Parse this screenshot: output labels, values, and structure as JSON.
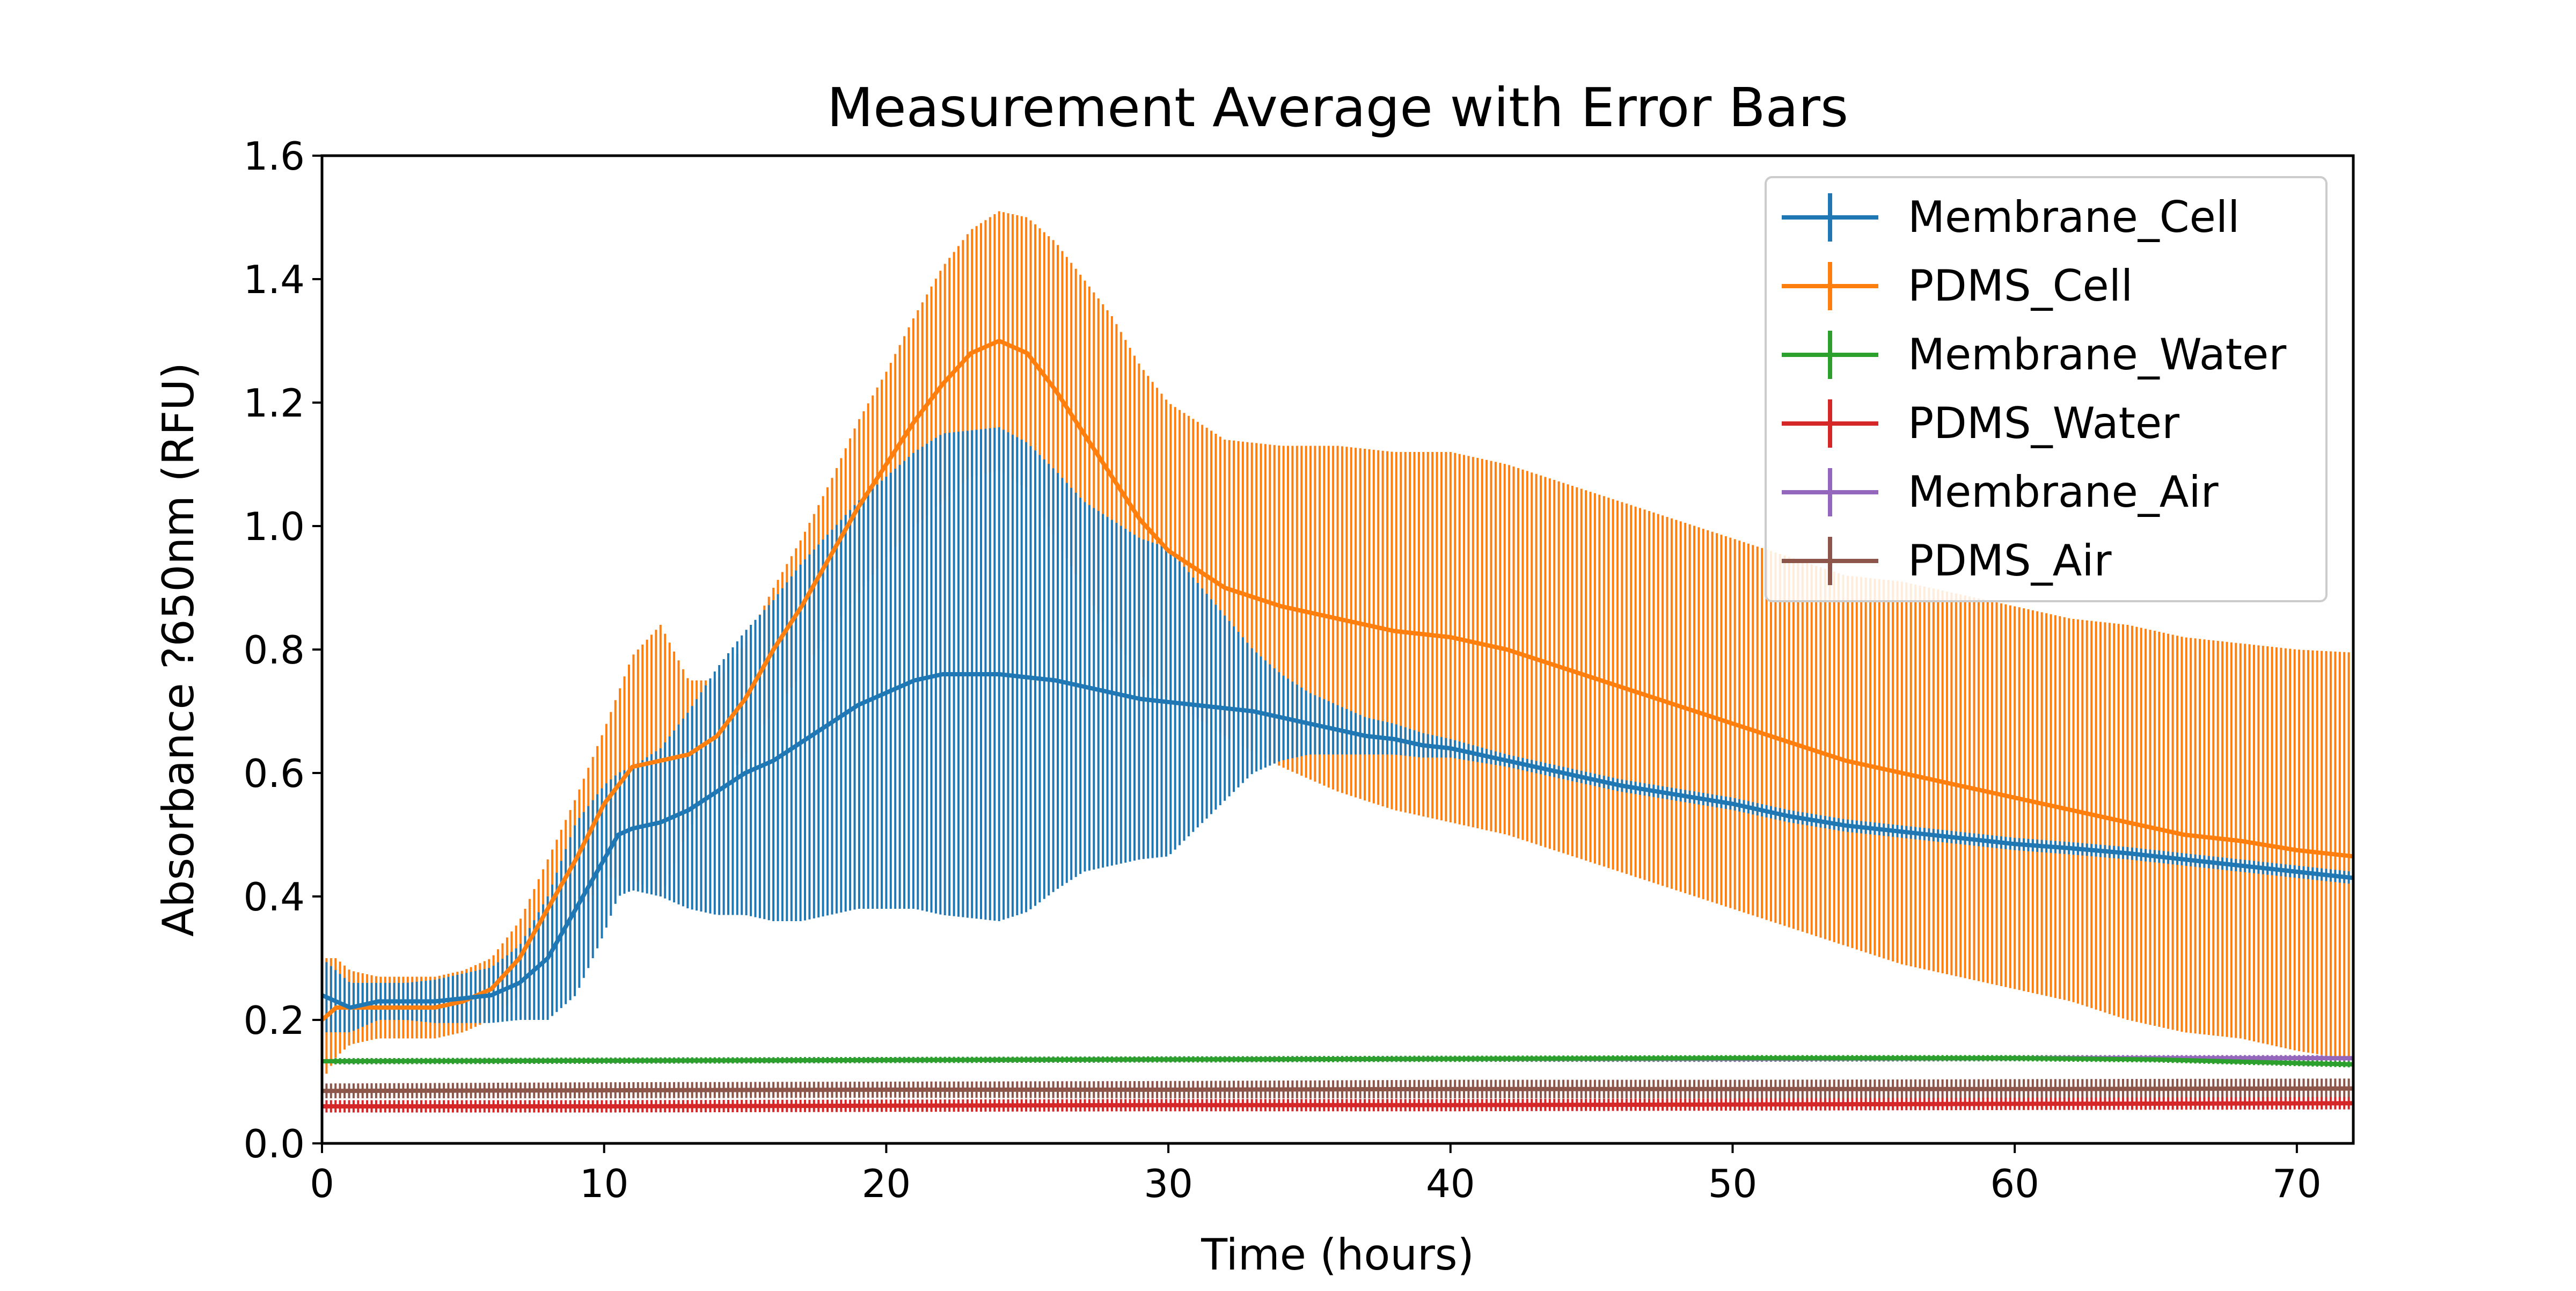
{
  "chart_data": {
    "type": "line",
    "title": "Measurement Average with Error Bars",
    "xlabel": "Time (hours)",
    "ylabel": "Absorbance ?650nm (RFU)",
    "xlim": [
      0,
      72
    ],
    "ylim": [
      0,
      1.6
    ],
    "xticks": [
      "0",
      "10",
      "20",
      "30",
      "40",
      "50",
      "60",
      "70"
    ],
    "yticks": [
      "0.0",
      "0.2",
      "0.4",
      "0.6",
      "0.8",
      "1.0",
      "1.2",
      "1.4",
      "1.6"
    ],
    "grid": false,
    "legend_position": "top-right",
    "series": [
      {
        "name": "Membrane_Cell",
        "color": "#1f77b4",
        "x": [
          0,
          0.5,
          1,
          2,
          3,
          4,
          5,
          6,
          7,
          8,
          9,
          10,
          10.5,
          11,
          12,
          13,
          14,
          15,
          16,
          17,
          18,
          19,
          20,
          21,
          22,
          23,
          24,
          25,
          26,
          27,
          28,
          29,
          30,
          31,
          32,
          33,
          34,
          35,
          36,
          37,
          38,
          39,
          40,
          42,
          44,
          46,
          48,
          50,
          52,
          54,
          56,
          58,
          60,
          62,
          64,
          66,
          68,
          70,
          72
        ],
        "mean": [
          0.24,
          0.23,
          0.22,
          0.23,
          0.23,
          0.23,
          0.235,
          0.24,
          0.26,
          0.3,
          0.38,
          0.46,
          0.5,
          0.51,
          0.52,
          0.54,
          0.57,
          0.6,
          0.62,
          0.65,
          0.68,
          0.71,
          0.73,
          0.75,
          0.76,
          0.76,
          0.76,
          0.755,
          0.75,
          0.74,
          0.73,
          0.72,
          0.715,
          0.71,
          0.705,
          0.7,
          0.69,
          0.68,
          0.67,
          0.66,
          0.655,
          0.645,
          0.64,
          0.62,
          0.6,
          0.58,
          0.565,
          0.55,
          0.53,
          0.515,
          0.505,
          0.495,
          0.485,
          0.478,
          0.47,
          0.46,
          0.45,
          0.44,
          0.43
        ],
        "err": [
          0.06,
          0.05,
          0.04,
          0.03,
          0.03,
          0.035,
          0.04,
          0.045,
          0.06,
          0.1,
          0.14,
          0.12,
          0.1,
          0.1,
          0.12,
          0.16,
          0.2,
          0.23,
          0.26,
          0.29,
          0.31,
          0.33,
          0.35,
          0.37,
          0.39,
          0.395,
          0.4,
          0.38,
          0.34,
          0.3,
          0.28,
          0.26,
          0.25,
          0.2,
          0.15,
          0.1,
          0.07,
          0.05,
          0.04,
          0.03,
          0.025,
          0.02,
          0.015,
          0.01,
          0.01,
          0.01,
          0.01,
          0.01,
          0.01,
          0.01,
          0.01,
          0.01,
          0.01,
          0.01,
          0.01,
          0.01,
          0.01,
          0.01,
          0.01
        ]
      },
      {
        "name": "PDMS_Cell",
        "color": "#ff7f0e",
        "x": [
          0,
          0.5,
          1,
          2,
          3,
          4,
          5,
          6,
          7,
          8,
          9,
          10,
          11,
          12,
          13,
          14,
          15,
          16,
          17,
          18,
          19,
          20,
          21,
          22,
          23,
          24,
          25,
          26,
          27,
          28,
          29,
          30,
          32,
          34,
          36,
          38,
          40,
          42,
          44,
          46,
          48,
          50,
          52,
          54,
          56,
          58,
          60,
          62,
          64,
          66,
          68,
          70,
          72
        ],
        "mean": [
          0.2,
          0.22,
          0.22,
          0.22,
          0.22,
          0.22,
          0.23,
          0.25,
          0.3,
          0.38,
          0.46,
          0.55,
          0.61,
          0.62,
          0.63,
          0.66,
          0.72,
          0.8,
          0.87,
          0.95,
          1.03,
          1.1,
          1.17,
          1.23,
          1.28,
          1.3,
          1.28,
          1.22,
          1.15,
          1.08,
          1.01,
          0.96,
          0.9,
          0.87,
          0.85,
          0.83,
          0.82,
          0.8,
          0.77,
          0.74,
          0.71,
          0.68,
          0.65,
          0.62,
          0.6,
          0.58,
          0.56,
          0.54,
          0.52,
          0.5,
          0.49,
          0.475,
          0.465
        ],
        "err": [
          0.1,
          0.08,
          0.06,
          0.05,
          0.05,
          0.05,
          0.05,
          0.05,
          0.06,
          0.08,
          0.1,
          0.12,
          0.18,
          0.22,
          0.12,
          0.09,
          0.09,
          0.1,
          0.11,
          0.12,
          0.14,
          0.15,
          0.17,
          0.19,
          0.2,
          0.21,
          0.22,
          0.24,
          0.25,
          0.26,
          0.25,
          0.24,
          0.24,
          0.26,
          0.28,
          0.29,
          0.3,
          0.3,
          0.3,
          0.3,
          0.3,
          0.3,
          0.3,
          0.3,
          0.31,
          0.31,
          0.31,
          0.31,
          0.32,
          0.32,
          0.32,
          0.325,
          0.33
        ]
      },
      {
        "name": "Membrane_Water",
        "color": "#2ca02c",
        "x": [
          0,
          10,
          20,
          30,
          40,
          50,
          60,
          65,
          70,
          72
        ],
        "mean": [
          0.133,
          0.134,
          0.135,
          0.136,
          0.137,
          0.138,
          0.138,
          0.136,
          0.13,
          0.128
        ],
        "err": [
          0.005,
          0.005,
          0.005,
          0.005,
          0.005,
          0.005,
          0.005,
          0.005,
          0.005,
          0.005
        ]
      },
      {
        "name": "PDMS_Water",
        "color": "#d62728",
        "x": [
          0,
          10,
          20,
          30,
          40,
          50,
          60,
          72
        ],
        "mean": [
          0.06,
          0.06,
          0.061,
          0.062,
          0.062,
          0.063,
          0.064,
          0.065
        ],
        "err": [
          0.01,
          0.01,
          0.01,
          0.01,
          0.01,
          0.01,
          0.01,
          0.01
        ]
      },
      {
        "name": "Membrane_Air",
        "color": "#9467bd",
        "x": [
          0,
          10,
          20,
          30,
          40,
          50,
          60,
          72
        ],
        "mean": [
          0.133,
          0.134,
          0.135,
          0.136,
          0.137,
          0.137,
          0.138,
          0.138
        ],
        "err": [
          0.005,
          0.005,
          0.005,
          0.005,
          0.005,
          0.005,
          0.005,
          0.005
        ]
      },
      {
        "name": "PDMS_Air",
        "color": "#8c564b",
        "x": [
          0,
          10,
          20,
          30,
          40,
          50,
          60,
          72
        ],
        "mean": [
          0.085,
          0.086,
          0.087,
          0.087,
          0.088,
          0.088,
          0.088,
          0.089
        ],
        "err": [
          0.012,
          0.013,
          0.013,
          0.014,
          0.015,
          0.015,
          0.016,
          0.016
        ]
      }
    ]
  }
}
